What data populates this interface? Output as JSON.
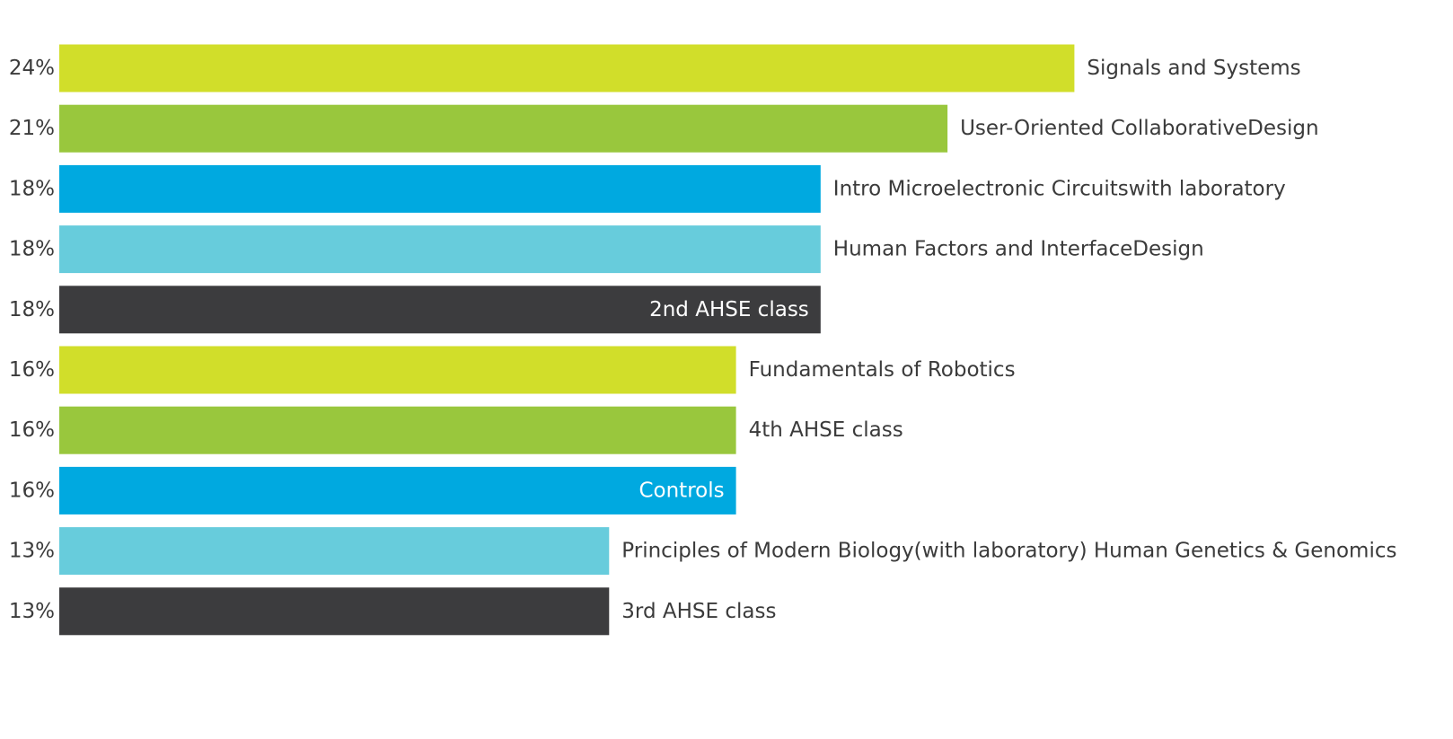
{
  "chart_data": {
    "type": "bar",
    "orientation": "horizontal",
    "categories": [
      "Signals and Systems",
      "User-Oriented CollaborativeDesign",
      "Intro Microelectronic Circuitswith laboratory",
      "Human Factors and InterfaceDesign",
      "2nd AHSE class",
      "Fundamentals of Robotics",
      "4th AHSE class",
      "Controls",
      "Principles of Modern Biology(with laboratory) Human Genetics & Genomics",
      "3rd AHSE class"
    ],
    "values": [
      24,
      21,
      18,
      18,
      18,
      16,
      16,
      16,
      13,
      13
    ],
    "value_labels": [
      "24%",
      "21%",
      "18%",
      "18%",
      "18%",
      "16%",
      "16%",
      "16%",
      "13%",
      "13%"
    ],
    "bar_colors": [
      "#d1de2a",
      "#99c73d",
      "#00a9e0",
      "#67ccdc",
      "#3c3c3e",
      "#d1de2a",
      "#99c73d",
      "#00a9e0",
      "#67ccdc",
      "#3c3c3e"
    ],
    "label_inside_bar": [
      false,
      false,
      false,
      false,
      true,
      false,
      false,
      true,
      false,
      false
    ],
    "value_label_position": "left of bar",
    "category_label_position": "right of bar end",
    "xlim": [
      0,
      24
    ],
    "grid": false,
    "axes_visible": false,
    "title": "",
    "xlabel": "",
    "ylabel": ""
  },
  "colors": {
    "text_outside": "#3b3b3b",
    "text_inside": "#ffffff"
  }
}
